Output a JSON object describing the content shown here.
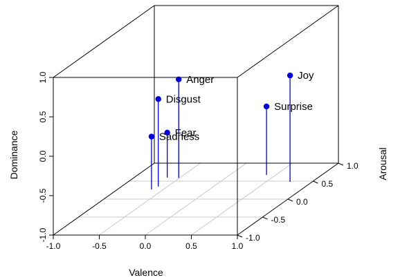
{
  "chart_data": {
    "type": "scatter",
    "subtype": "3d-scatter-with-drop-lines",
    "xlabel": "Valence",
    "ylabel": "Arousal",
    "zlabel": "Dominance",
    "xlim": [
      -1.0,
      1.0
    ],
    "ylim": [
      -1.0,
      1.0
    ],
    "zlim": [
      -1.0,
      1.0
    ],
    "x_ticks": [
      "-1.0",
      "-0.5",
      "0.0",
      "0.5",
      "1.0"
    ],
    "y_ticks": [
      "-1.0",
      "-0.5",
      "0.0",
      "0.5",
      "1.0"
    ],
    "z_ticks": [
      "-1.0",
      "-0.5",
      "0.0",
      "0.5",
      "1.0"
    ],
    "x_tick_values": [
      -1.0,
      -0.5,
      0.0,
      0.5,
      1.0
    ],
    "y_tick_values": [
      -1.0,
      -0.5,
      0.0,
      0.5,
      1.0
    ],
    "z_tick_values": [
      -1.0,
      -0.5,
      0.0,
      0.5,
      1.0
    ],
    "floor_grid": true,
    "point_color": "#0000dd",
    "points": [
      {
        "label": "Anger",
        "x": -0.51,
        "y": 0.59,
        "z": 0.25
      },
      {
        "label": "Disgust",
        "x": -0.6,
        "y": 0.35,
        "z": 0.11
      },
      {
        "label": "Fear",
        "x": -0.64,
        "y": 0.6,
        "z": -0.43
      },
      {
        "label": "Sadness",
        "x": -0.63,
        "y": 0.27,
        "z": -0.33
      },
      {
        "label": "Joy",
        "x": 0.76,
        "y": 0.48,
        "z": 0.35
      },
      {
        "label": "Surprise",
        "x": 0.4,
        "y": 0.67,
        "z": -0.13
      }
    ]
  }
}
